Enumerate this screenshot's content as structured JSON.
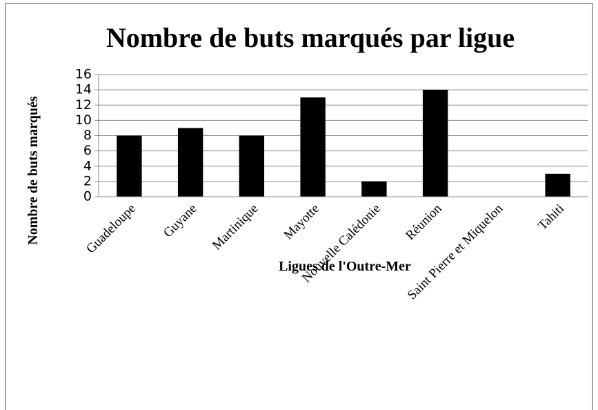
{
  "chart_data": {
    "type": "bar",
    "title": "Nombre de buts marqués par ligue",
    "x_label": "Ligues de l'Outre-Mer",
    "y_label": "Nombre de buts marqués",
    "categories": [
      "Guadeloupe",
      "Guyane",
      "Martinique",
      "Mayotte",
      "Nouvelle Calédonie",
      "Réunion",
      "Saint Pierre et Miquelon",
      "Tahiti"
    ],
    "values": [
      8,
      9,
      8,
      13,
      2,
      14,
      0,
      3
    ],
    "color": "#000000",
    "ylim": [
      0,
      16
    ],
    "yticks": [
      0,
      2,
      4,
      6,
      8,
      10,
      12,
      14,
      16
    ],
    "grid": true
  }
}
